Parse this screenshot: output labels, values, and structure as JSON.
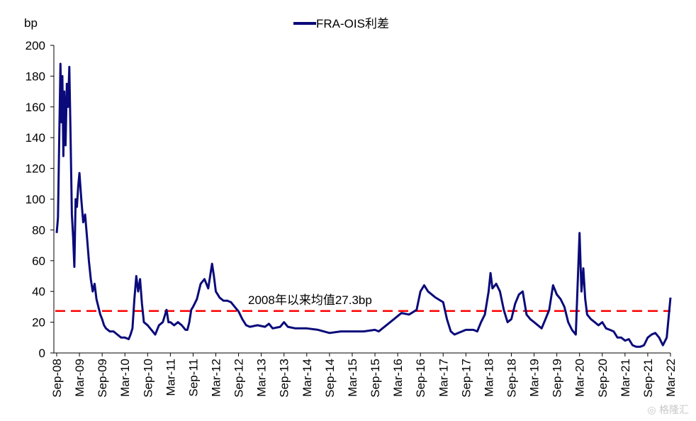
{
  "chart_data": {
    "type": "line",
    "unit_label": "bp",
    "legend": {
      "label": "FRA-OIS利差",
      "placement": "top-center"
    },
    "annotation": {
      "text": "2008年以来均值27.3bp",
      "value": 27.3
    },
    "ylim": [
      0,
      200
    ],
    "yticks": [
      0,
      20,
      40,
      60,
      80,
      100,
      120,
      140,
      160,
      180,
      200
    ],
    "xticks": [
      "Sep-08",
      "Mar-09",
      "Sep-09",
      "Mar-10",
      "Sep-10",
      "Mar-11",
      "Sep-11",
      "Mar-12",
      "Sep-12",
      "Mar-13",
      "Sep-13",
      "Mar-14",
      "Sep-14",
      "Mar-15",
      "Sep-15",
      "Mar-16",
      "Sep-16",
      "Mar-17",
      "Sep-17",
      "Mar-18",
      "Sep-18",
      "Mar-19",
      "Sep-19",
      "Mar-20",
      "Sep-20",
      "Mar-21",
      "Sep-21",
      "Mar-22"
    ],
    "colors": {
      "series": "#0a0a7a",
      "mean_line": "#ff0000"
    },
    "series": [
      {
        "name": "FRA-OIS利差",
        "points": [
          [
            "2008-09",
            78
          ],
          [
            "2008-09",
            88
          ],
          [
            "2008-09",
            140
          ],
          [
            "2008-10",
            188
          ],
          [
            "2008-10",
            150
          ],
          [
            "2008-10",
            180
          ],
          [
            "2008-10",
            128
          ],
          [
            "2008-11",
            170
          ],
          [
            "2008-11",
            135
          ],
          [
            "2008-11",
            175
          ],
          [
            "2008-12",
            160
          ],
          [
            "2008-12",
            186
          ],
          [
            "2008-12",
            140
          ],
          [
            "2009-01",
            90
          ],
          [
            "2009-01",
            75
          ],
          [
            "2009-01",
            56
          ],
          [
            "2009-02",
            100
          ],
          [
            "2009-02",
            95
          ],
          [
            "2009-02",
            108
          ],
          [
            "2009-03",
            117
          ],
          [
            "2009-03",
            100
          ],
          [
            "2009-04",
            85
          ],
          [
            "2009-04",
            90
          ],
          [
            "2009-05",
            75
          ],
          [
            "2009-05",
            60
          ],
          [
            "2009-06",
            48
          ],
          [
            "2009-06",
            40
          ],
          [
            "2009-07",
            45
          ],
          [
            "2009-07",
            35
          ],
          [
            "2009-08",
            30
          ],
          [
            "2009-08",
            25
          ],
          [
            "2009-09",
            22
          ],
          [
            "2009-09",
            18
          ],
          [
            "2009-10",
            16
          ],
          [
            "2009-11",
            14
          ],
          [
            "2009-12",
            14
          ],
          [
            "2010-01",
            12
          ],
          [
            "2010-02",
            10
          ],
          [
            "2010-03",
            10
          ],
          [
            "2010-04",
            9
          ],
          [
            "2010-04",
            12
          ],
          [
            "2010-05",
            16
          ],
          [
            "2010-05",
            35
          ],
          [
            "2010-06",
            50
          ],
          [
            "2010-06",
            40
          ],
          [
            "2010-07",
            48
          ],
          [
            "2010-07",
            32
          ],
          [
            "2010-08",
            20
          ],
          [
            "2010-09",
            18
          ],
          [
            "2010-10",
            15
          ],
          [
            "2010-11",
            12
          ],
          [
            "2010-12",
            18
          ],
          [
            "2011-01",
            20
          ],
          [
            "2011-02",
            28
          ],
          [
            "2011-02",
            20
          ],
          [
            "2011-03",
            20
          ],
          [
            "2011-04",
            18
          ],
          [
            "2011-05",
            20
          ],
          [
            "2011-06",
            18
          ],
          [
            "2011-07",
            15
          ],
          [
            "2011-07",
            15
          ],
          [
            "2011-08",
            20
          ],
          [
            "2011-08",
            28
          ],
          [
            "2011-09",
            30
          ],
          [
            "2011-10",
            35
          ],
          [
            "2011-11",
            45
          ],
          [
            "2011-12",
            48
          ],
          [
            "2012-01",
            42
          ],
          [
            "2012-01",
            50
          ],
          [
            "2012-02",
            58
          ],
          [
            "2012-02",
            50
          ],
          [
            "2012-03",
            40
          ],
          [
            "2012-04",
            36
          ],
          [
            "2012-05",
            34
          ],
          [
            "2012-06",
            34
          ],
          [
            "2012-07",
            33
          ],
          [
            "2012-08",
            30
          ],
          [
            "2012-09",
            27
          ],
          [
            "2012-10",
            22
          ],
          [
            "2012-11",
            18
          ],
          [
            "2012-12",
            17
          ],
          [
            "2013-02",
            18
          ],
          [
            "2013-04",
            17
          ],
          [
            "2013-05",
            19
          ],
          [
            "2013-06",
            16
          ],
          [
            "2013-08",
            17
          ],
          [
            "2013-09",
            20
          ],
          [
            "2013-10",
            17
          ],
          [
            "2013-12",
            16
          ],
          [
            "2014-03",
            16
          ],
          [
            "2014-06",
            15
          ],
          [
            "2014-09",
            13
          ],
          [
            "2014-12",
            14
          ],
          [
            "2015-03",
            14
          ],
          [
            "2015-06",
            14
          ],
          [
            "2015-09",
            15
          ],
          [
            "2015-10",
            14
          ],
          [
            "2015-12",
            18
          ],
          [
            "2016-02",
            22
          ],
          [
            "2016-04",
            26
          ],
          [
            "2016-06",
            25
          ],
          [
            "2016-08",
            28
          ],
          [
            "2016-09",
            40
          ],
          [
            "2016-10",
            44
          ],
          [
            "2016-11",
            40
          ],
          [
            "2017-01",
            36
          ],
          [
            "2017-03",
            33
          ],
          [
            "2017-04",
            22
          ],
          [
            "2017-05",
            14
          ],
          [
            "2017-06",
            12
          ],
          [
            "2017-07",
            13
          ],
          [
            "2017-09",
            15
          ],
          [
            "2017-11",
            15
          ],
          [
            "2017-12",
            14
          ],
          [
            "2018-01",
            20
          ],
          [
            "2018-02",
            25
          ],
          [
            "2018-03",
            40
          ],
          [
            "2018-03",
            52
          ],
          [
            "2018-04",
            42
          ],
          [
            "2018-05",
            45
          ],
          [
            "2018-06",
            40
          ],
          [
            "2018-07",
            28
          ],
          [
            "2018-08",
            20
          ],
          [
            "2018-09",
            22
          ],
          [
            "2018-10",
            32
          ],
          [
            "2018-11",
            38
          ],
          [
            "2018-12",
            40
          ],
          [
            "2019-01",
            25
          ],
          [
            "2019-02",
            22
          ],
          [
            "2019-03",
            20
          ],
          [
            "2019-04",
            18
          ],
          [
            "2019-05",
            16
          ],
          [
            "2019-06",
            22
          ],
          [
            "2019-07",
            28
          ],
          [
            "2019-08",
            44
          ],
          [
            "2019-09",
            38
          ],
          [
            "2019-10",
            35
          ],
          [
            "2019-11",
            30
          ],
          [
            "2019-12",
            20
          ],
          [
            "2020-01",
            15
          ],
          [
            "2020-02",
            12
          ],
          [
            "2020-03",
            78
          ],
          [
            "2020-03",
            40
          ],
          [
            "2020-04",
            55
          ],
          [
            "2020-04",
            35
          ],
          [
            "2020-05",
            25
          ],
          [
            "2020-06",
            22
          ],
          [
            "2020-07",
            20
          ],
          [
            "2020-08",
            18
          ],
          [
            "2020-09",
            20
          ],
          [
            "2020-10",
            16
          ],
          [
            "2020-11",
            15
          ],
          [
            "2020-12",
            14
          ],
          [
            "2021-01",
            10
          ],
          [
            "2021-02",
            10
          ],
          [
            "2021-03",
            8
          ],
          [
            "2021-04",
            9
          ],
          [
            "2021-05",
            5
          ],
          [
            "2021-06",
            4
          ],
          [
            "2021-07",
            4
          ],
          [
            "2021-08",
            5
          ],
          [
            "2021-09",
            10
          ],
          [
            "2021-10",
            12
          ],
          [
            "2021-11",
            13
          ],
          [
            "2021-12",
            10
          ],
          [
            "2022-01",
            5
          ],
          [
            "2022-02",
            10
          ],
          [
            "2022-03",
            36
          ]
        ]
      }
    ]
  }
}
